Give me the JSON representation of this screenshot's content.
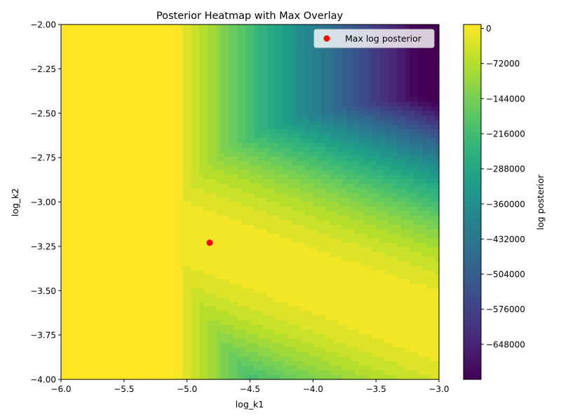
{
  "chart_data": {
    "type": "heatmap",
    "title": "Posterior Heatmap with Max Overlay",
    "xlabel": "log_k1",
    "ylabel": "log_k2",
    "xlim": [
      -6.0,
      -3.0
    ],
    "ylim": [
      -4.0,
      -2.0
    ],
    "x_ticks": [
      -6.0,
      -5.5,
      -5.0,
      -4.5,
      -4.0,
      -3.5,
      -3.0
    ],
    "x_tick_labels": [
      "−6.0",
      "−5.5",
      "−5.0",
      "−4.5",
      "−4.0",
      "−3.5",
      "−3.0"
    ],
    "y_ticks": [
      -4.0,
      -3.75,
      -3.5,
      -3.25,
      -3.0,
      -2.75,
      -2.5,
      -2.25,
      -2.0
    ],
    "y_tick_labels": [
      "−4.00",
      "−3.75",
      "−3.50",
      "−3.25",
      "−3.00",
      "−2.75",
      "−2.50",
      "−2.25",
      "−2.00"
    ],
    "colorbar": {
      "label": "log posterior",
      "colormap": "viridis",
      "range": [
        -720000,
        8000
      ],
      "ticks": [
        0,
        -72000,
        -144000,
        -216000,
        -288000,
        -360000,
        -432000,
        -504000,
        -576000,
        -648000
      ],
      "tick_labels": [
        "0",
        "−72000",
        "−144000",
        "−216000",
        "−288000",
        "−360000",
        "−432000",
        "−504000",
        "−576000",
        "−648000"
      ]
    },
    "max_point": {
      "x": -4.82,
      "y": -3.23,
      "color": "#ff0000"
    },
    "legend": {
      "placement": "upper-right",
      "entries": [
        {
          "label": "Max log posterior",
          "marker": "circle",
          "color": "#ff0000"
        }
      ]
    }
  }
}
